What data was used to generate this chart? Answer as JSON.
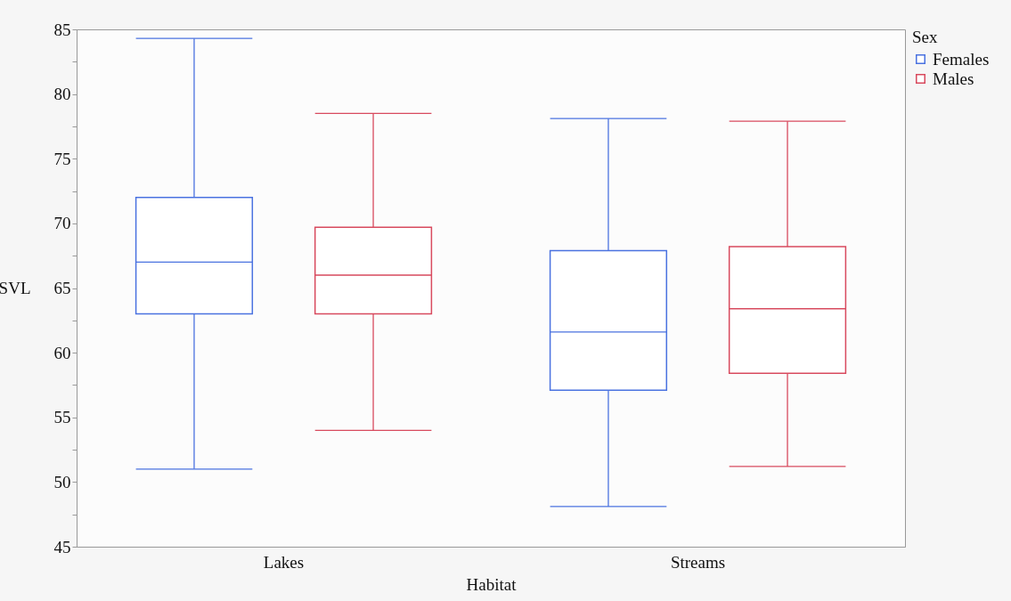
{
  "chart_data": {
    "type": "box",
    "categories": [
      "Lakes",
      "Streams"
    ],
    "xlabel": "Habitat",
    "ylabel": "SVL",
    "legend_title": "Sex",
    "legend": "top right",
    "grid": false,
    "ylim": [
      45,
      85
    ],
    "yticks": [
      45,
      {
        "value": 47.5,
        "label": null
      },
      50,
      {
        "value": 52.5,
        "label": null
      },
      55,
      {
        "value": 57.5,
        "label": null
      },
      60,
      {
        "value": 62.5,
        "label": null
      },
      65,
      {
        "value": 67.5,
        "label": null
      },
      70,
      {
        "value": 72.5,
        "label": null
      },
      75,
      {
        "value": 77.5,
        "label": null
      },
      80,
      {
        "value": 82.5,
        "label": null
      },
      85
    ],
    "series": [
      {
        "name": "Females",
        "color": "#4a72e0",
        "boxes": [
          {
            "low": 51.0,
            "q1": 63.0,
            "median": 67.0,
            "q3": 72.0,
            "high": 84.3
          },
          {
            "low": 48.1,
            "q1": 57.1,
            "median": 61.6,
            "q3": 67.9,
            "high": 78.1
          }
        ]
      },
      {
        "name": "Males",
        "color": "#d84a5e",
        "boxes": [
          {
            "low": 54.0,
            "q1": 63.0,
            "median": 66.0,
            "q3": 69.7,
            "high": 78.5
          },
          {
            "low": 51.2,
            "q1": 58.4,
            "median": 63.4,
            "q3": 68.2,
            "high": 77.9
          }
        ]
      }
    ]
  }
}
